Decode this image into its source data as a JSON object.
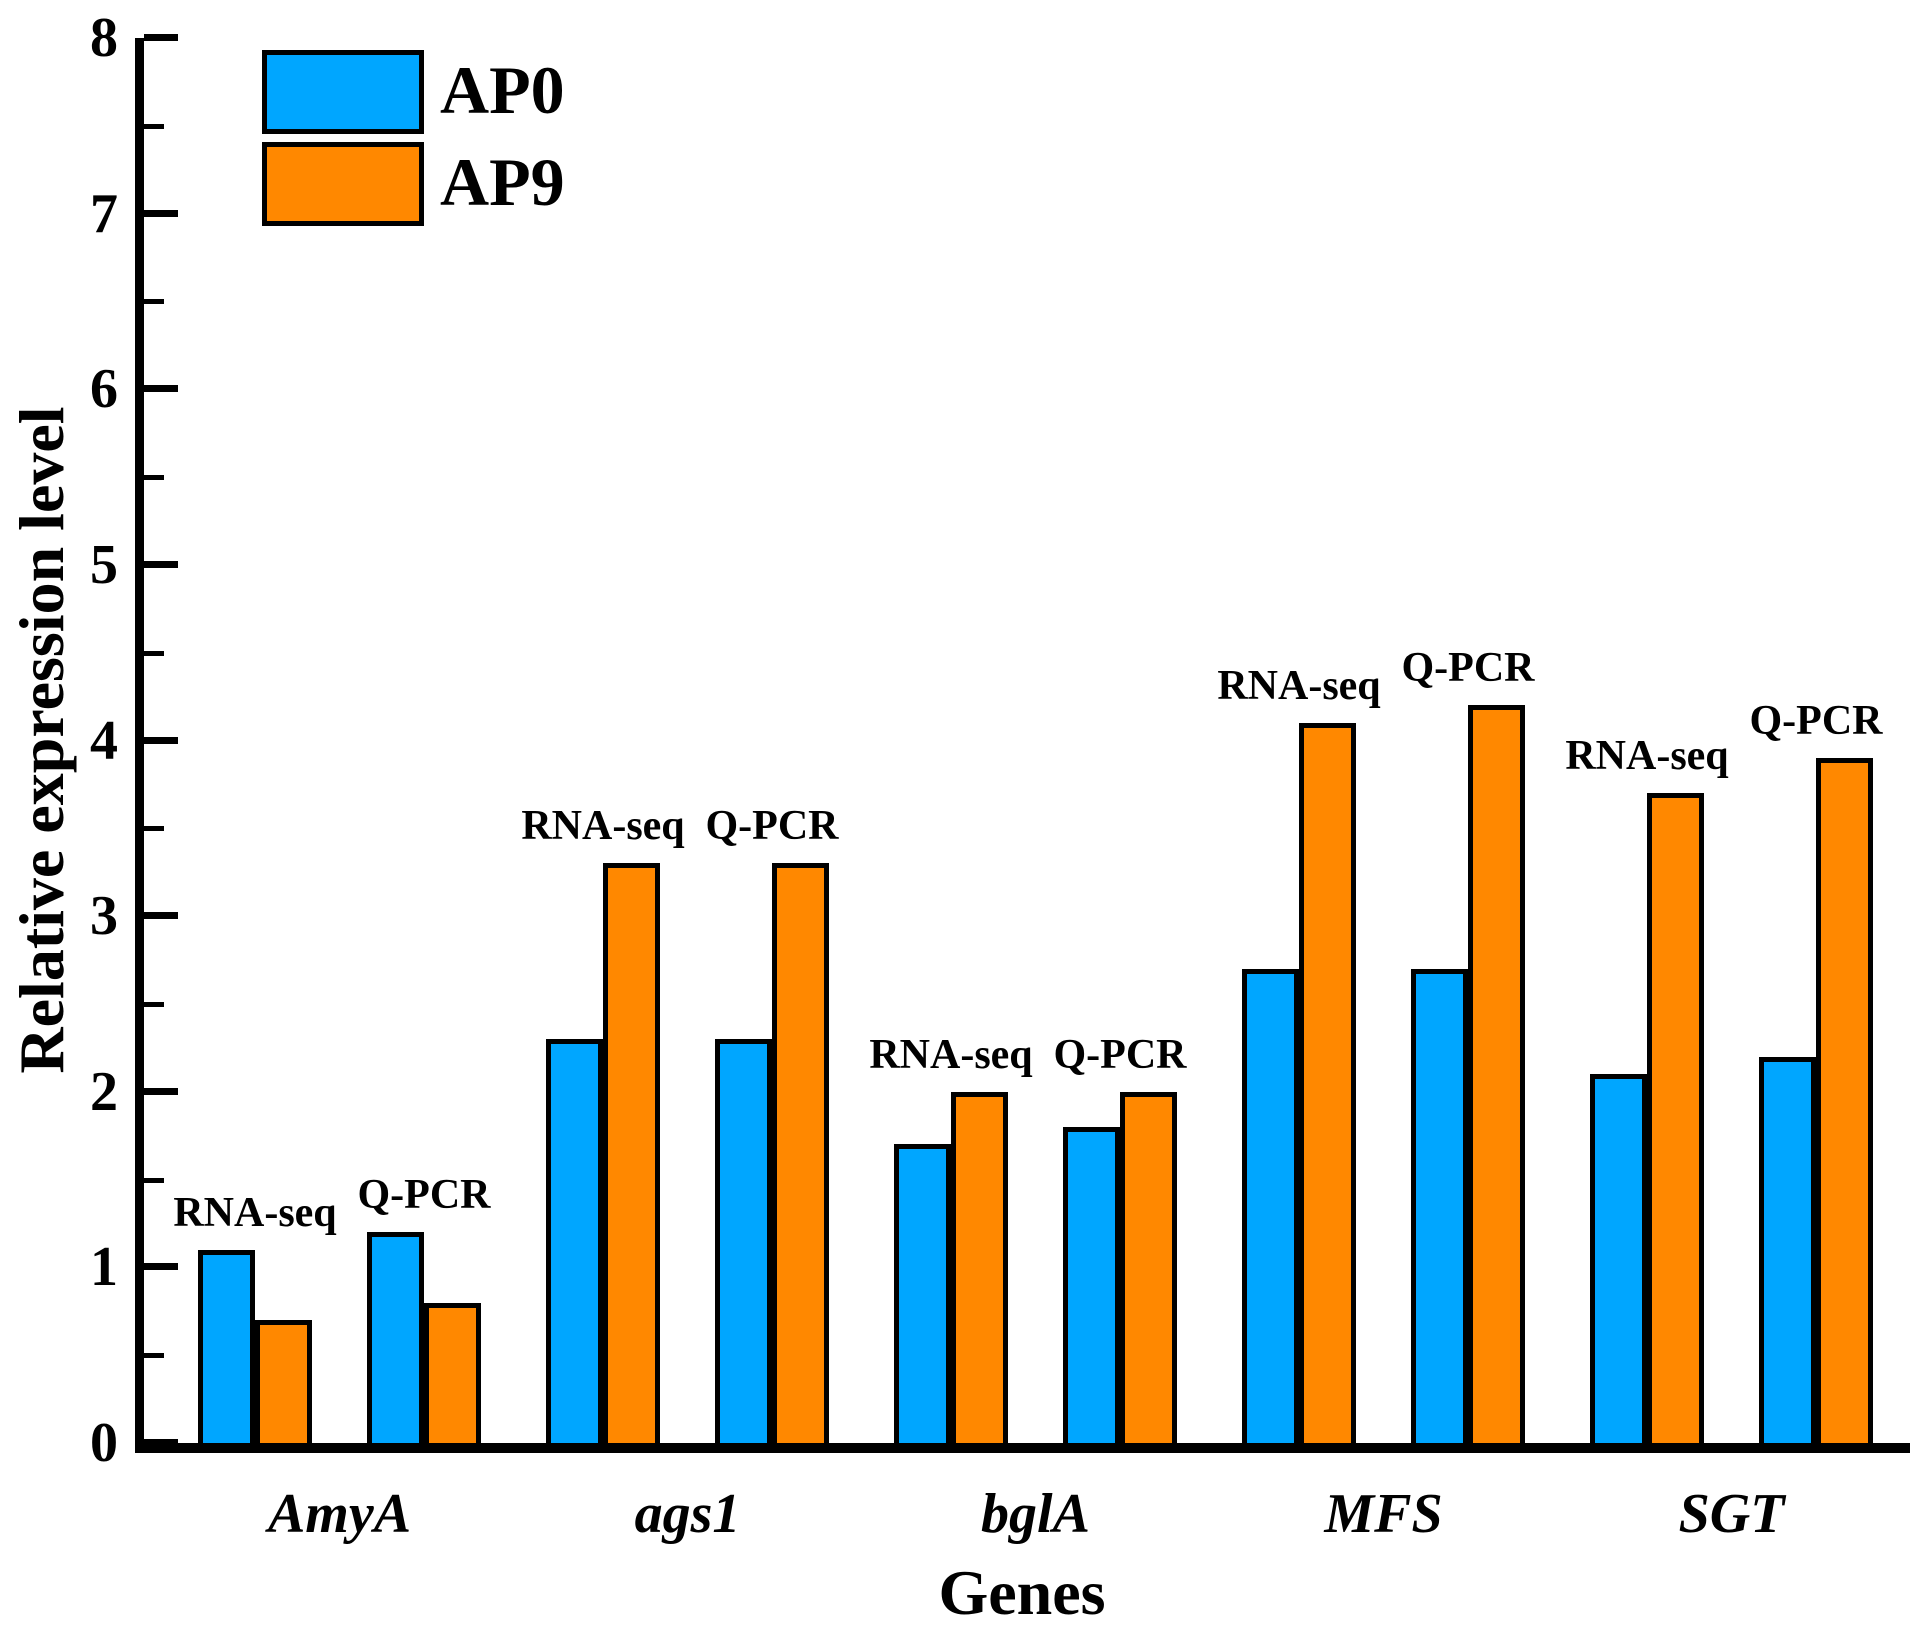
{
  "chart_data": {
    "type": "bar",
    "title": "",
    "xlabel": "Genes",
    "ylabel": "Relative expression level",
    "ylim": [
      0,
      8
    ],
    "ytick_step": 1,
    "yminor_step": 0.5,
    "grid": false,
    "legend_position": "top-left",
    "legend": [
      {
        "label": "AP0",
        "color": "#00A6FF"
      },
      {
        "label": "AP9",
        "color": "#FF8800"
      }
    ],
    "bar_outline_color": "#000000",
    "categories": [
      "AmyA",
      "ags1",
      "bglA",
      "MFS",
      "SGT"
    ],
    "pair_labels": [
      "RNA-seq",
      "Q-PCR"
    ],
    "groups": [
      {
        "gene": "AmyA",
        "pairs": [
          {
            "label": "RNA-seq",
            "AP0": 1.1,
            "AP9": 0.7
          },
          {
            "label": "Q-PCR",
            "AP0": 1.2,
            "AP9": 0.8
          }
        ]
      },
      {
        "gene": "ags1",
        "pairs": [
          {
            "label": "RNA-seq",
            "AP0": 2.3,
            "AP9": 3.3
          },
          {
            "label": "Q-PCR",
            "AP0": 2.3,
            "AP9": 3.3
          }
        ]
      },
      {
        "gene": "bglA",
        "pairs": [
          {
            "label": "RNA-seq",
            "AP0": 1.7,
            "AP9": 2.0
          },
          {
            "label": "Q-PCR",
            "AP0": 1.8,
            "AP9": 2.0
          }
        ]
      },
      {
        "gene": "MFS",
        "pairs": [
          {
            "label": "RNA-seq",
            "AP0": 2.7,
            "AP9": 4.1
          },
          {
            "label": "Q-PCR",
            "AP0": 2.7,
            "AP9": 4.2
          }
        ]
      },
      {
        "gene": "SGT",
        "pairs": [
          {
            "label": "RNA-seq",
            "AP0": 2.1,
            "AP9": 3.7
          },
          {
            "label": "Q-PCR",
            "AP0": 2.2,
            "AP9": 3.9
          }
        ]
      }
    ]
  }
}
